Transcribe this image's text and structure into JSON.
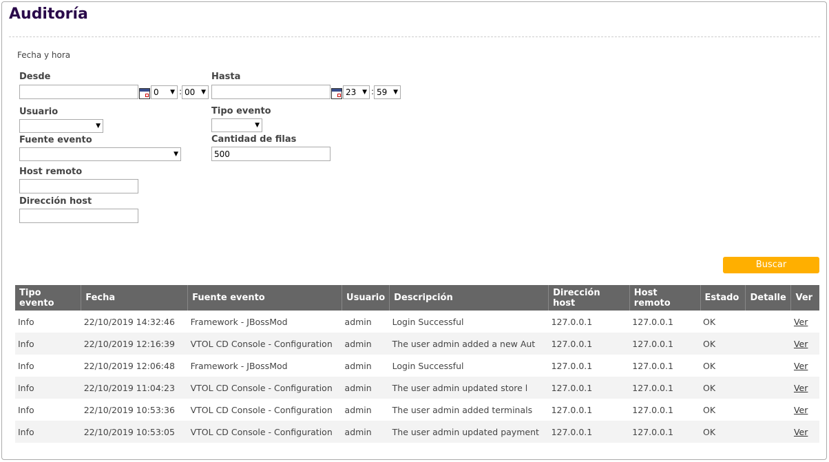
{
  "title": "Auditoría",
  "section": "Fecha y hora",
  "form": {
    "desde_label": "Desde",
    "desde_value": "",
    "desde_hour": "0",
    "desde_min": "00",
    "hasta_label": "Hasta",
    "hasta_value": "",
    "hasta_hour": "23",
    "hasta_min": "59",
    "time_sep": ":",
    "usuario_label": "Usuario",
    "usuario_value": "",
    "tipo_label": "Tipo evento",
    "tipo_value": "",
    "fuente_label": "Fuente evento",
    "fuente_value": "",
    "cantidad_label": "Cantidad de filas",
    "cantidad_value": "500",
    "host_remoto_label": "Host remoto",
    "host_remoto_value": "",
    "direccion_label": "Dirección host",
    "direccion_value": ""
  },
  "search_button": "Buscar",
  "table": {
    "headers": [
      "Tipo evento",
      "Fecha",
      "Fuente evento",
      "Usuario",
      "Descripción",
      "Dirección host",
      "Host remoto",
      "Estado",
      "Detalle",
      "Ver"
    ],
    "rows": [
      [
        "Info",
        "22/10/2019 14:32:46",
        "Framework - JBossMod",
        "admin",
        "Login Successful",
        "127.0.0.1",
        "127.0.0.1",
        "OK",
        "",
        "Ver"
      ],
      [
        "Info",
        "22/10/2019 12:16:39",
        "VTOL CD Console - Configuration",
        "admin",
        "The user admin added a new Aut",
        "127.0.0.1",
        "127.0.0.1",
        "OK",
        "",
        "Ver"
      ],
      [
        "Info",
        "22/10/2019 12:06:48",
        "Framework - JBossMod",
        "admin",
        "Login Successful",
        "127.0.0.1",
        "127.0.0.1",
        "OK",
        "",
        "Ver"
      ],
      [
        "Info",
        "22/10/2019 11:04:23",
        "VTOL CD Console - Configuration",
        "admin",
        "The user admin updated store l",
        "127.0.0.1",
        "127.0.0.1",
        "OK",
        "",
        "Ver"
      ],
      [
        "Info",
        "22/10/2019 10:53:36",
        "VTOL CD Console - Configuration",
        "admin",
        "The user admin added terminals",
        "127.0.0.1",
        "127.0.0.1",
        "OK",
        "",
        "Ver"
      ],
      [
        "Info",
        "22/10/2019 10:53:05",
        "VTOL CD Console - Configuration",
        "admin",
        "The user admin updated payment",
        "127.0.0.1",
        "127.0.0.1",
        "OK",
        "",
        "Ver"
      ]
    ]
  },
  "colors": {
    "title": "#2a0a4a",
    "button": "#ffaf00",
    "header_bg": "#666666",
    "row_alt": "#f3f3f3"
  }
}
